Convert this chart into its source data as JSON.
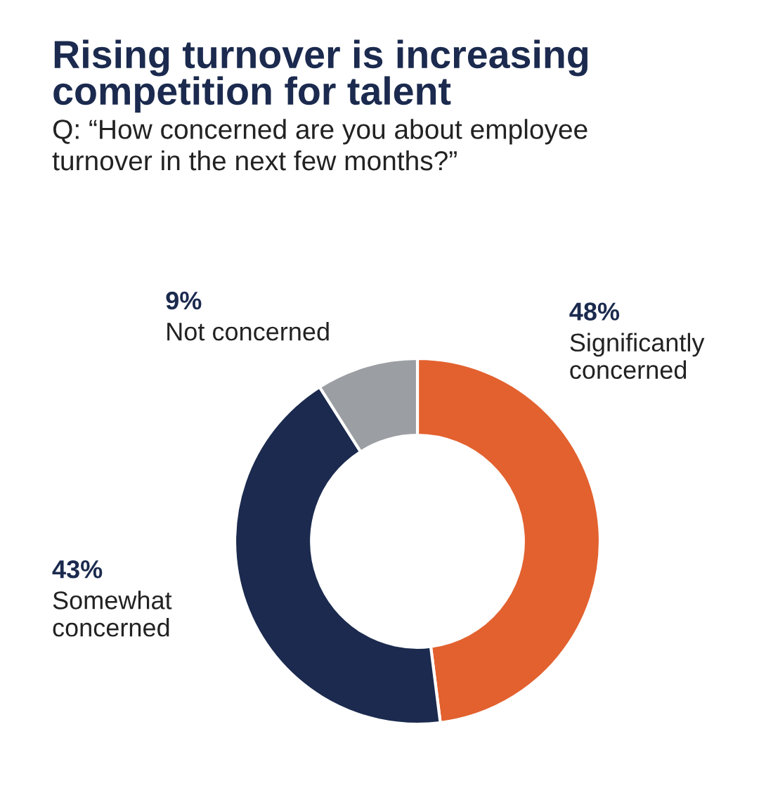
{
  "chart_data": {
    "type": "donut",
    "title": "Rising turnover is increasing\ncompetition for talent",
    "subtitle": "Q: “How concerned are you about employee\nturnover in the next few months?”",
    "categories": [
      "Significantly\nconcerned",
      "Somewhat\nconcerned",
      "Not concerned"
    ],
    "values": [
      48,
      43,
      9
    ],
    "value_labels": [
      "48%",
      "43%",
      "9%"
    ],
    "colors": [
      "#e2612f",
      "#1b2a4e",
      "#9b9ea2"
    ],
    "legend": false
  }
}
